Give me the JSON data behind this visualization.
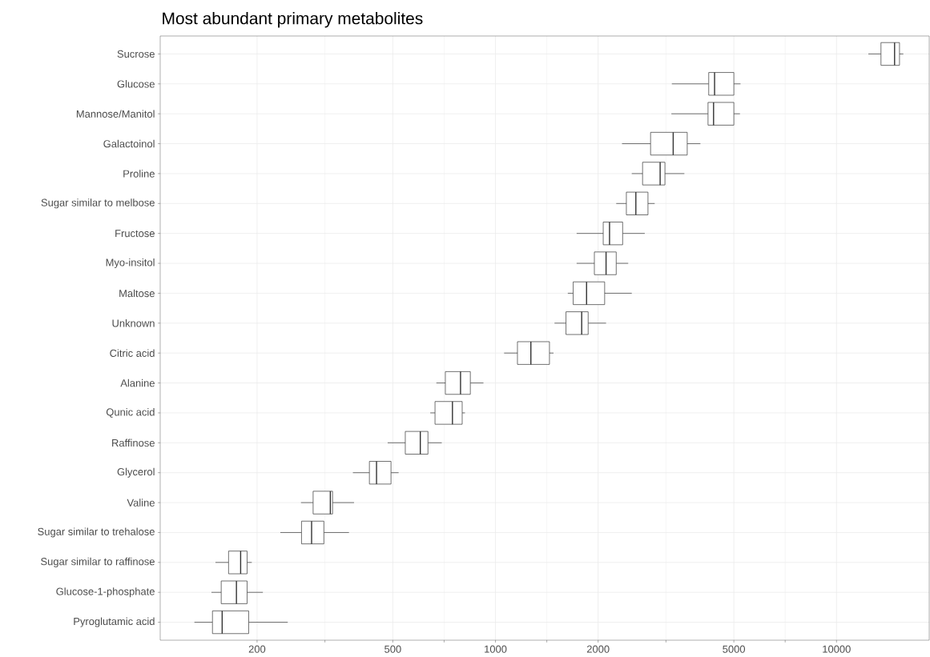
{
  "chart_data": {
    "type": "box",
    "title": "Most abundant primary metabolites",
    "orientation": "horizontal",
    "log": "x",
    "grid": true,
    "categories": [
      "Sucrose",
      "Glucose",
      "Mannose/Manitol",
      "Galactoinol",
      "Proline",
      "Sugar similar to melbose",
      "Fructose",
      "Myo-insitol",
      "Maltose",
      "Unknown",
      "Citric acid",
      "Alanine",
      "Qunic acid",
      "Raffinose",
      "Glycerol",
      "Valine",
      "Sugar similar to trehalose",
      "Sugar similar to raffinose",
      "Glucose-1-phosphate",
      "Pyroglutamic acid"
    ],
    "xlim": [
      104,
      18700
    ],
    "xticks": [
      200,
      500,
      1000,
      2000,
      5000,
      10000
    ],
    "series": [
      {
        "color": "#333333",
        "boxes": [
          {
            "low": 12400,
            "q1": 13500,
            "median": 14800,
            "q3": 15300,
            "high": 15700
          },
          {
            "low": 3290,
            "q1": 4220,
            "median": 4390,
            "q3": 5000,
            "high": 5230
          },
          {
            "low": 3280,
            "q1": 4200,
            "median": 4360,
            "q3": 5000,
            "high": 5210
          },
          {
            "low": 2350,
            "q1": 2850,
            "median": 3320,
            "q3": 3650,
            "high": 3990
          },
          {
            "low": 2510,
            "q1": 2700,
            "median": 3040,
            "q3": 3140,
            "high": 3580
          },
          {
            "low": 2260,
            "q1": 2420,
            "median": 2580,
            "q3": 2800,
            "high": 2930
          },
          {
            "low": 1730,
            "q1": 2070,
            "median": 2160,
            "q3": 2360,
            "high": 2740
          },
          {
            "low": 1730,
            "q1": 1950,
            "median": 2110,
            "q3": 2260,
            "high": 2450
          },
          {
            "low": 1630,
            "q1": 1690,
            "median": 1850,
            "q3": 2090,
            "high": 2510
          },
          {
            "low": 1490,
            "q1": 1610,
            "median": 1790,
            "q3": 1870,
            "high": 2110
          },
          {
            "low": 1060,
            "q1": 1160,
            "median": 1270,
            "q3": 1440,
            "high": 1480
          },
          {
            "low": 671,
            "q1": 713,
            "median": 790,
            "q3": 844,
            "high": 922
          },
          {
            "low": 644,
            "q1": 665,
            "median": 748,
            "q3": 799,
            "high": 814
          },
          {
            "low": 483,
            "q1": 544,
            "median": 602,
            "q3": 634,
            "high": 696
          },
          {
            "low": 382,
            "q1": 427,
            "median": 448,
            "q3": 494,
            "high": 520
          },
          {
            "low": 269,
            "q1": 292,
            "median": 328,
            "q3": 333,
            "high": 385
          },
          {
            "low": 234,
            "q1": 270,
            "median": 289,
            "q3": 314,
            "high": 372
          },
          {
            "low": 151,
            "q1": 165,
            "median": 179,
            "q3": 187,
            "high": 193
          },
          {
            "low": 147,
            "q1": 157,
            "median": 174,
            "q3": 187,
            "high": 208
          },
          {
            "low": 131,
            "q1": 148,
            "median": 158,
            "q3": 189,
            "high": 246
          }
        ]
      }
    ]
  }
}
